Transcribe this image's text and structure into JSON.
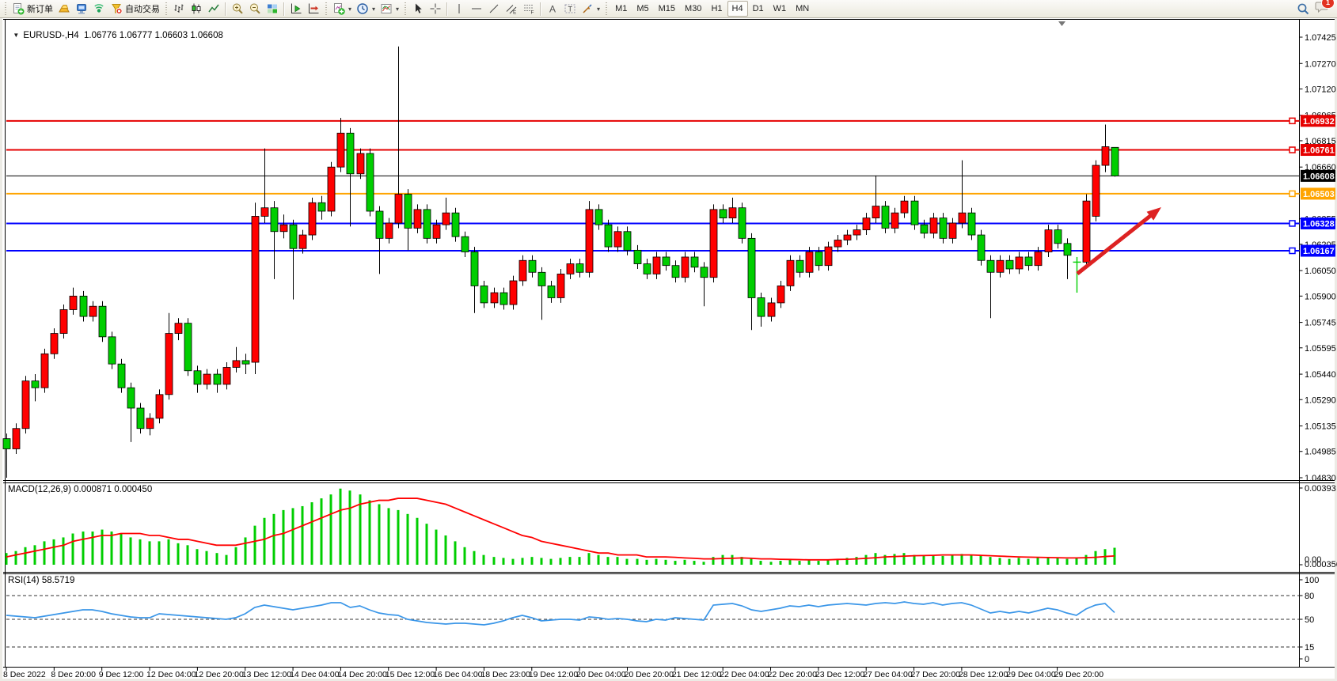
{
  "toolbar": {
    "new_order_label": "新订单",
    "autotrading_label": "自动交易",
    "timeframes": [
      "M1",
      "M5",
      "M15",
      "M30",
      "H1",
      "H4",
      "D1",
      "W1",
      "MN"
    ],
    "active_timeframe": "H4",
    "notification_count": "1"
  },
  "chart": {
    "symbol_period": "EURUSD-,H4",
    "ohlc_text": "1.06776 1.06777 1.06603 1.06608",
    "macd_label": "MACD(12,26,9) 0.000871 0.000450",
    "rsi_label": "RSI(14) 58.5719"
  },
  "chart_data": {
    "type": "candlestick",
    "symbol": "EURUSD-",
    "timeframe": "H4",
    "current_bar": {
      "open": 1.06776,
      "high": 1.06777,
      "low": 1.06603,
      "close": 1.06608
    },
    "colors": {
      "bull": "#ff0000",
      "bear": "#00ce00",
      "wick": "#000000",
      "macd_hist": "#00ce00",
      "macd_signal": "#ff0000",
      "rsi_line": "#3a96e8",
      "hline_red": "#e60000",
      "hline_orange": "#ffa400",
      "hline_blue": "#0000ff"
    },
    "price_ticks": [
      "1.07425",
      "1.07270",
      "1.07120",
      "1.06965",
      "1.06815",
      "1.06660",
      "1.06355",
      "1.06205",
      "1.06050",
      "1.05900",
      "1.05745",
      "1.05595",
      "1.05440",
      "1.05290",
      "1.05135",
      "1.04985",
      "1.04830"
    ],
    "hlines": [
      {
        "price": 1.06932,
        "label": "1.06932",
        "color": "#e60000",
        "width": 2,
        "current": false
      },
      {
        "price": 1.06761,
        "label": "1.06761",
        "color": "#e60000",
        "width": 2,
        "current": false
      },
      {
        "price": 1.06608,
        "label": "1.06608",
        "color": "#000000",
        "width": 1,
        "current": true
      },
      {
        "price": 1.06503,
        "label": "1.06503",
        "color": "#ffa400",
        "width": 2,
        "current": false
      },
      {
        "price": 1.06328,
        "label": "1.06328",
        "color": "#0000ff",
        "width": 2,
        "current": false
      },
      {
        "price": 1.06167,
        "label": "1.06167",
        "color": "#0000ff",
        "width": 2,
        "current": false
      }
    ],
    "time_labels": [
      "8 Dec 2022",
      "8 Dec 20:00",
      "9 Dec 12:00",
      "12 Dec 04:00",
      "12 Dec 20:00",
      "13 Dec 12:00",
      "14 Dec 04:00",
      "14 Dec 20:00",
      "15 Dec 12:00",
      "16 Dec 04:00",
      "18 Dec 23:00",
      "19 Dec 12:00",
      "20 Dec 04:00",
      "20 Dec 20:00",
      "21 Dec 12:00",
      "22 Dec 04:00",
      "22 Dec 20:00",
      "23 Dec 12:00",
      "27 Dec 04:00",
      "27 Dec 20:00",
      "28 Dec 12:00",
      "29 Dec 04:00",
      "29 Dec 20:00"
    ],
    "candles": [
      [
        1.0506,
        1.0509,
        1.0483,
        1.05
      ],
      [
        1.05,
        1.0515,
        1.0497,
        1.0512
      ],
      [
        1.0512,
        1.0543,
        1.0509,
        1.054
      ],
      [
        1.054,
        1.0544,
        1.0528,
        1.0536
      ],
      [
        1.0536,
        1.0559,
        1.0533,
        1.0556
      ],
      [
        1.0556,
        1.0571,
        1.0553,
        1.0568
      ],
      [
        1.0568,
        1.0585,
        1.0565,
        1.0582
      ],
      [
        1.0582,
        1.0595,
        1.0579,
        1.059
      ],
      [
        1.059,
        1.0593,
        1.0575,
        1.0578
      ],
      [
        1.0578,
        1.0587,
        1.0575,
        1.0584
      ],
      [
        1.0584,
        1.0587,
        1.0563,
        1.0566
      ],
      [
        1.0566,
        1.0569,
        1.0547,
        1.055
      ],
      [
        1.055,
        1.0553,
        1.0533,
        1.0536
      ],
      [
        1.0536,
        1.0539,
        1.0504,
        1.0524
      ],
      [
        1.0524,
        1.0527,
        1.0509,
        1.0512
      ],
      [
        1.0512,
        1.0521,
        1.0508,
        1.0518
      ],
      [
        1.0518,
        1.0535,
        1.0515,
        1.0532
      ],
      [
        1.0532,
        1.058,
        1.0529,
        1.0568
      ],
      [
        1.0568,
        1.0577,
        1.0564,
        1.0574
      ],
      [
        1.0574,
        1.0577,
        1.0543,
        1.0546
      ],
      [
        1.0546,
        1.0549,
        1.0533,
        1.0538
      ],
      [
        1.0538,
        1.0547,
        1.0535,
        1.0544
      ],
      [
        1.0544,
        1.0547,
        1.0533,
        1.0538
      ],
      [
        1.0538,
        1.0551,
        1.0535,
        1.0548
      ],
      [
        1.0548,
        1.056,
        1.0545,
        1.0552
      ],
      [
        1.0552,
        1.0556,
        1.0544,
        1.055
      ],
      [
        1.0551,
        1.0645,
        1.0544,
        1.0637
      ],
      [
        1.0637,
        1.0677,
        1.0633,
        1.0642
      ],
      [
        1.0642,
        1.0646,
        1.06,
        1.0628
      ],
      [
        1.0628,
        1.0638,
        1.0624,
        1.0632
      ],
      [
        1.0632,
        1.0635,
        1.0588,
        1.0618
      ],
      [
        1.0618,
        1.0629,
        1.0615,
        1.0626
      ],
      [
        1.0626,
        1.0648,
        1.0623,
        1.0645
      ],
      [
        1.0645,
        1.0649,
        1.0635,
        1.064
      ],
      [
        1.064,
        1.0669,
        1.0637,
        1.0666
      ],
      [
        1.0666,
        1.0695,
        1.0663,
        1.0686
      ],
      [
        1.0686,
        1.0689,
        1.0631,
        1.0662
      ],
      [
        1.0662,
        1.0677,
        1.0659,
        1.0674
      ],
      [
        1.0674,
        1.0677,
        1.0637,
        1.064
      ],
      [
        1.064,
        1.0643,
        1.0603,
        1.0624
      ],
      [
        1.0624,
        1.0636,
        1.0621,
        1.0633
      ],
      [
        1.0633,
        1.0737,
        1.063,
        1.065
      ],
      [
        1.065,
        1.0653,
        1.0617,
        1.063
      ],
      [
        1.063,
        1.0644,
        1.0627,
        1.0641
      ],
      [
        1.0641,
        1.0644,
        1.0621,
        1.0624
      ],
      [
        1.0624,
        1.0635,
        1.0621,
        1.0632
      ],
      [
        1.0632,
        1.0648,
        1.0629,
        1.0639
      ],
      [
        1.0639,
        1.0642,
        1.0622,
        1.0625
      ],
      [
        1.0625,
        1.0628,
        1.0613,
        1.0616
      ],
      [
        1.0616,
        1.0619,
        1.058,
        1.0596
      ],
      [
        1.0596,
        1.0599,
        1.0583,
        1.0586
      ],
      [
        1.0586,
        1.0595,
        1.0583,
        1.0592
      ],
      [
        1.0592,
        1.0595,
        1.0582,
        1.0585
      ],
      [
        1.0585,
        1.0602,
        1.0582,
        1.0599
      ],
      [
        1.0599,
        1.0614,
        1.0596,
        1.0611
      ],
      [
        1.0611,
        1.0614,
        1.0601,
        1.0604
      ],
      [
        1.0604,
        1.0607,
        1.0576,
        1.0596
      ],
      [
        1.0596,
        1.0599,
        1.0586,
        1.0589
      ],
      [
        1.0589,
        1.0606,
        1.0586,
        1.0603
      ],
      [
        1.0603,
        1.0612,
        1.06,
        1.0609
      ],
      [
        1.0609,
        1.0612,
        1.0601,
        1.0604
      ],
      [
        1.0604,
        1.0646,
        1.0601,
        1.0641
      ],
      [
        1.0641,
        1.0644,
        1.0629,
        1.0632
      ],
      [
        1.0632,
        1.0635,
        1.0616,
        1.0619
      ],
      [
        1.0619,
        1.0631,
        1.0616,
        1.0628
      ],
      [
        1.0628,
        1.0631,
        1.0614,
        1.0617
      ],
      [
        1.0617,
        1.062,
        1.0606,
        1.0609
      ],
      [
        1.0609,
        1.0612,
        1.06,
        1.0603
      ],
      [
        1.0603,
        1.0616,
        1.06,
        1.0613
      ],
      [
        1.0613,
        1.0616,
        1.0605,
        1.0608
      ],
      [
        1.0608,
        1.0611,
        1.0598,
        1.0601
      ],
      [
        1.0601,
        1.0616,
        1.0598,
        1.0613
      ],
      [
        1.0613,
        1.0616,
        1.0604,
        1.0607
      ],
      [
        1.0607,
        1.061,
        1.0584,
        1.0601
      ],
      [
        1.0601,
        1.0644,
        1.0598,
        1.0641
      ],
      [
        1.0641,
        1.0644,
        1.0633,
        1.0636
      ],
      [
        1.0636,
        1.0648,
        1.0633,
        1.0642
      ],
      [
        1.0642,
        1.0645,
        1.0621,
        1.0624
      ],
      [
        1.0624,
        1.0627,
        1.057,
        1.0589
      ],
      [
        1.0589,
        1.0592,
        1.0572,
        1.0578
      ],
      [
        1.0578,
        1.0589,
        1.0575,
        1.0586
      ],
      [
        1.0586,
        1.0599,
        1.0583,
        1.0596
      ],
      [
        1.0596,
        1.0614,
        1.0593,
        1.0611
      ],
      [
        1.0611,
        1.0614,
        1.0601,
        1.0604
      ],
      [
        1.0604,
        1.0619,
        1.0601,
        1.0616
      ],
      [
        1.0616,
        1.0619,
        1.0605,
        1.0608
      ],
      [
        1.0608,
        1.0622,
        1.0605,
        1.0619
      ],
      [
        1.0619,
        1.0626,
        1.0616,
        1.0623
      ],
      [
        1.0623,
        1.0629,
        1.062,
        1.0626
      ],
      [
        1.0626,
        1.0632,
        1.0623,
        1.0629
      ],
      [
        1.0629,
        1.0639,
        1.0626,
        1.0636
      ],
      [
        1.0636,
        1.0661,
        1.0633,
        1.0643
      ],
      [
        1.0643,
        1.0646,
        1.0627,
        1.063
      ],
      [
        1.063,
        1.0642,
        1.0627,
        1.0639
      ],
      [
        1.0639,
        1.0649,
        1.0636,
        1.0646
      ],
      [
        1.0646,
        1.0649,
        1.0629,
        1.0632
      ],
      [
        1.0632,
        1.0635,
        1.0624,
        1.0627
      ],
      [
        1.0627,
        1.0639,
        1.0624,
        1.0636
      ],
      [
        1.0636,
        1.0639,
        1.0621,
        1.0624
      ],
      [
        1.0624,
        1.0636,
        1.0621,
        1.0633
      ],
      [
        1.0633,
        1.067,
        1.063,
        1.0639
      ],
      [
        1.0639,
        1.0642,
        1.0623,
        1.0626
      ],
      [
        1.0626,
        1.0629,
        1.0608,
        1.0611
      ],
      [
        1.0611,
        1.0614,
        1.0577,
        1.0604
      ],
      [
        1.0604,
        1.0614,
        1.0601,
        1.0611
      ],
      [
        1.0611,
        1.0614,
        1.0603,
        1.0606
      ],
      [
        1.0606,
        1.0616,
        1.0603,
        1.0613
      ],
      [
        1.0613,
        1.0616,
        1.0605,
        1.0608
      ],
      [
        1.0608,
        1.0619,
        1.0605,
        1.0616
      ],
      [
        1.0616,
        1.0632,
        1.0613,
        1.0629
      ],
      [
        1.0629,
        1.0632,
        1.0618,
        1.0621
      ],
      [
        1.0621,
        1.0624,
        1.06,
        1.0614
      ],
      [
        1.061,
        1.0613,
        1.0592,
        1.061
      ],
      [
        1.061,
        1.065,
        1.0607,
        1.0646
      ],
      [
        1.0637,
        1.067,
        1.0634,
        1.0667
      ],
      [
        1.0667,
        1.0691,
        1.0663,
        1.0678
      ],
      [
        1.06776,
        1.06777,
        1.06603,
        1.06608
      ]
    ],
    "doji_cross_index": 112,
    "macd": {
      "params": "12,26,9",
      "value_main": 0.000871,
      "value_signal": 0.00045,
      "max": 0.00393,
      "axis_labels": [
        "0.00393",
        "0.000356",
        "0.00"
      ],
      "histogram": [
        0.0006,
        0.0007,
        0.0009,
        0.001,
        0.0012,
        0.0013,
        0.0014,
        0.0016,
        0.0017,
        0.0017,
        0.0018,
        0.0017,
        0.0016,
        0.0014,
        0.0013,
        0.0012,
        0.0012,
        0.0013,
        0.0011,
        0.001,
        0.0008,
        0.0007,
        0.0006,
        0.0005,
        0.0009,
        0.0014,
        0.002,
        0.0024,
        0.0026,
        0.0028,
        0.0029,
        0.003,
        0.0032,
        0.0034,
        0.0036,
        0.0039,
        0.0038,
        0.0036,
        0.0033,
        0.0031,
        0.0029,
        0.0028,
        0.0026,
        0.0024,
        0.0021,
        0.0018,
        0.0015,
        0.0012,
        0.0009,
        0.0007,
        0.0005,
        0.0004,
        0.00035,
        0.0003,
        0.00035,
        0.0004,
        0.00035,
        0.0003,
        0.00035,
        0.0004,
        0.0004,
        0.0006,
        0.0005,
        0.0004,
        0.0004,
        0.0003,
        0.0003,
        0.00025,
        0.0003,
        0.00025,
        0.0002,
        0.00025,
        0.0002,
        0.00015,
        0.0004,
        0.0005,
        0.0005,
        0.0004,
        0.0003,
        0.0002,
        0.00015,
        0.0002,
        0.00025,
        0.0002,
        0.00025,
        0.0002,
        0.00025,
        0.0003,
        0.00035,
        0.0004,
        0.0005,
        0.0006,
        0.0005,
        0.00055,
        0.0006,
        0.0005,
        0.00045,
        0.0005,
        0.00045,
        0.0005,
        0.00055,
        0.0005,
        0.00045,
        0.0004,
        0.00035,
        0.0003,
        0.00035,
        0.0003,
        0.00035,
        0.0004,
        0.00035,
        0.0003,
        0.00035,
        0.0005,
        0.0007,
        0.0008,
        0.00087
      ],
      "signal": [
        0.0004,
        0.0005,
        0.0006,
        0.0007,
        0.0008,
        0.0009,
        0.001,
        0.0012,
        0.0013,
        0.0014,
        0.0015,
        0.0015,
        0.0016,
        0.0016,
        0.0016,
        0.0015,
        0.0015,
        0.0014,
        0.0013,
        0.0013,
        0.0012,
        0.0011,
        0.001,
        0.001,
        0.001,
        0.0011,
        0.0012,
        0.0013,
        0.0015,
        0.0016,
        0.0018,
        0.002,
        0.0022,
        0.0024,
        0.0026,
        0.0028,
        0.0029,
        0.0031,
        0.0032,
        0.0033,
        0.0033,
        0.0034,
        0.0034,
        0.0034,
        0.0033,
        0.0032,
        0.0031,
        0.0029,
        0.0027,
        0.0025,
        0.0023,
        0.0021,
        0.0019,
        0.0017,
        0.0015,
        0.0014,
        0.0012,
        0.0011,
        0.001,
        0.0009,
        0.0008,
        0.0007,
        0.0006,
        0.0006,
        0.0005,
        0.0005,
        0.0005,
        0.0004,
        0.0004,
        0.0004,
        0.00038,
        0.00035,
        0.00033,
        0.0003,
        0.0003,
        0.00032,
        0.00033,
        0.00035,
        0.00033,
        0.0003,
        0.0003,
        0.00028,
        0.00027,
        0.00026,
        0.00025,
        0.00025,
        0.00025,
        0.00027,
        0.00028,
        0.0003,
        0.00033,
        0.00036,
        0.0004,
        0.00042,
        0.00044,
        0.00046,
        0.00047,
        0.00048,
        0.0005,
        0.0005,
        0.0005,
        0.0005,
        0.00048,
        0.00046,
        0.00044,
        0.00042,
        0.0004,
        0.00039,
        0.00038,
        0.00037,
        0.00036,
        0.00035,
        0.00035,
        0.00036,
        0.00038,
        0.00042,
        0.00045
      ]
    },
    "rsi": {
      "period": 14,
      "value": 58.5719,
      "levels": [
        80,
        50,
        15
      ],
      "axis_labels": [
        "100",
        "80",
        "50",
        "15",
        "0"
      ],
      "line": [
        55,
        54,
        53,
        52,
        54,
        56,
        58,
        60,
        62,
        62,
        60,
        57,
        55,
        53,
        52,
        52,
        57,
        56,
        55,
        54,
        53,
        52,
        51,
        50,
        52,
        57,
        65,
        68,
        66,
        64,
        62,
        64,
        66,
        68,
        71,
        71,
        65,
        67,
        62,
        58,
        56,
        55,
        50,
        48,
        46,
        45,
        44,
        45,
        45,
        44,
        43,
        45,
        48,
        52,
        55,
        52,
        48,
        49,
        50,
        50,
        49,
        53,
        52,
        50,
        51,
        50,
        48,
        47,
        50,
        49,
        52,
        51,
        50,
        49,
        68,
        69,
        70,
        67,
        62,
        60,
        62,
        64,
        67,
        66,
        68,
        66,
        68,
        69,
        70,
        69,
        68,
        70,
        71,
        70,
        72,
        70,
        69,
        71,
        68,
        70,
        71,
        68,
        63,
        58,
        60,
        58,
        60,
        58,
        61,
        64,
        62,
        58,
        55,
        63,
        68,
        70,
        58.57
      ]
    },
    "annotations": [
      {
        "type": "arrow",
        "from": [
          1361,
          346
        ],
        "to": [
          1467,
          262
        ],
        "color": "#dd2222"
      }
    ]
  }
}
